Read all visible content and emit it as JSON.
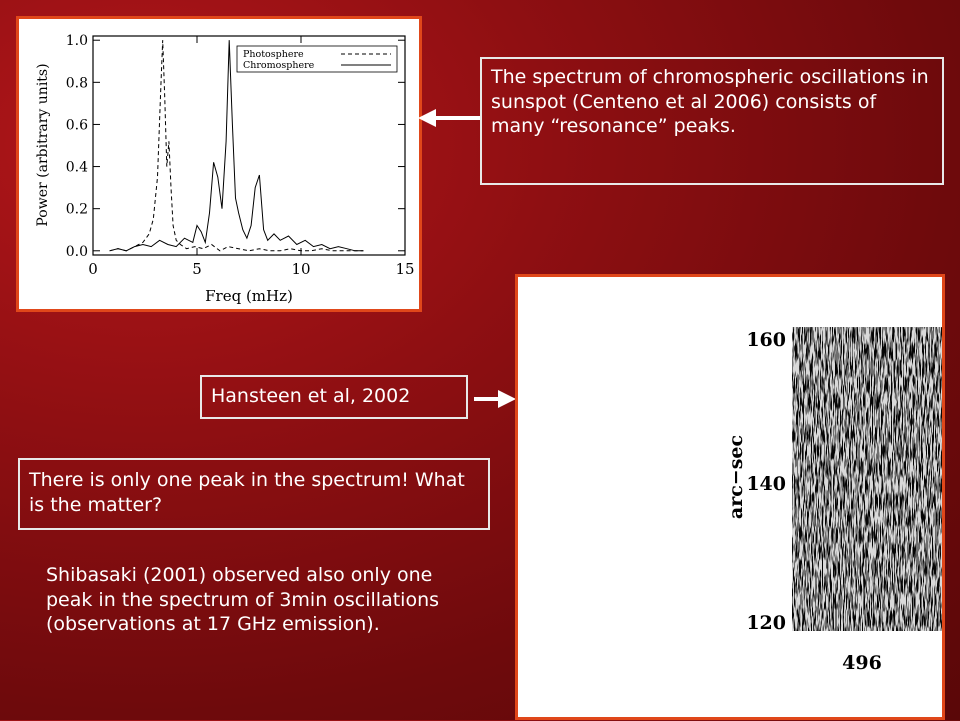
{
  "chart_data": {
    "type": "line",
    "xlabel": "Freq (mHz)",
    "ylabel": "Power (arbitrary units)",
    "xlim": [
      0,
      15
    ],
    "ylim": [
      -0.02,
      1.02
    ],
    "xticks": [
      0,
      5,
      10,
      15
    ],
    "yticks": [
      0.0,
      0.2,
      0.4,
      0.6,
      0.8,
      1.0
    ],
    "ytick_labels": [
      "0.0",
      "0.2",
      "0.4",
      "0.6",
      "0.8",
      "1.0"
    ],
    "legend_placement": "top-right",
    "series": [
      {
        "name": "Photosphere",
        "style": "dashed",
        "x": [
          0.8,
          1.2,
          1.6,
          2.0,
          2.4,
          2.7,
          2.9,
          3.1,
          3.25,
          3.35,
          3.45,
          3.55,
          3.65,
          3.75,
          3.85,
          4.0,
          4.2,
          4.5,
          4.9,
          5.3,
          5.7,
          6.1,
          6.5,
          7.0,
          7.5,
          8.0,
          8.5,
          9.0,
          9.5,
          10.0,
          10.5,
          11.0,
          11.5,
          12.0,
          12.5,
          13.0
        ],
        "y": [
          0.0,
          0.01,
          0.0,
          0.02,
          0.04,
          0.08,
          0.15,
          0.35,
          0.75,
          1.0,
          0.72,
          0.4,
          0.52,
          0.3,
          0.12,
          0.05,
          0.03,
          0.01,
          0.02,
          0.01,
          0.03,
          0.0,
          0.02,
          0.01,
          0.0,
          0.01,
          0.0,
          0.0,
          0.01,
          0.0,
          0.0,
          0.01,
          0.0,
          0.0,
          0.0,
          0.0
        ],
        "color": "#000000"
      },
      {
        "name": "Chromosphere",
        "style": "solid",
        "x": [
          0.8,
          1.2,
          1.6,
          2.0,
          2.4,
          2.8,
          3.2,
          3.6,
          4.0,
          4.4,
          4.8,
          5.0,
          5.2,
          5.4,
          5.6,
          5.8,
          6.0,
          6.2,
          6.4,
          6.55,
          6.7,
          6.85,
          7.0,
          7.2,
          7.4,
          7.6,
          7.8,
          8.0,
          8.2,
          8.4,
          8.7,
          9.0,
          9.4,
          9.8,
          10.2,
          10.6,
          11.0,
          11.4,
          11.8,
          12.2,
          12.6,
          13.0
        ],
        "y": [
          0.0,
          0.01,
          0.0,
          0.02,
          0.03,
          0.02,
          0.05,
          0.03,
          0.02,
          0.06,
          0.04,
          0.12,
          0.09,
          0.04,
          0.18,
          0.42,
          0.35,
          0.2,
          0.52,
          1.0,
          0.6,
          0.25,
          0.18,
          0.1,
          0.06,
          0.12,
          0.3,
          0.36,
          0.1,
          0.05,
          0.08,
          0.05,
          0.07,
          0.03,
          0.05,
          0.02,
          0.03,
          0.01,
          0.02,
          0.01,
          0.0,
          0.0
        ],
        "color": "#000000"
      }
    ]
  },
  "image_panel": {
    "ylabel": "arc−sec",
    "yticks": [
      "160",
      "140",
      "120"
    ],
    "xtick": "496"
  },
  "texts": {
    "spectrum_note": "The spectrum of chromospheric oscillations in sunspot (Centeno et al 2006) consists of many “resonance” peaks.",
    "hansteen": "Hansteen et al, 2002",
    "one_peak": "There is only one peak in the spectrum! What is the matter?",
    "shibasaki": "Shibasaki (2001) observed also only one peak in the spectrum of 3min oscillations (observations at 17 GHz emission)."
  },
  "colors": {
    "background": "#8f0f12",
    "panel_border": "#e0471a",
    "textbox_border": "#e8e8e8"
  }
}
